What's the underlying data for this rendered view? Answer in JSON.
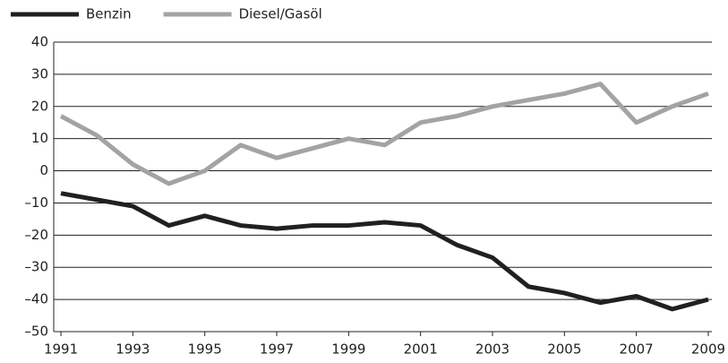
{
  "chart_data": {
    "type": "line",
    "x": [
      1991,
      1992,
      1993,
      1994,
      1995,
      1996,
      1997,
      1998,
      1999,
      2000,
      2001,
      2002,
      2003,
      2004,
      2005,
      2006,
      2007,
      2008,
      2009
    ],
    "series": [
      {
        "name": "Benzin",
        "color": "#231f20",
        "values": [
          -7,
          -9,
          -11,
          -17,
          -14,
          -17,
          -18,
          -17,
          -17,
          -16,
          -17,
          -23,
          -27,
          -36,
          -38,
          -41,
          -39,
          -43,
          -40
        ]
      },
      {
        "name": "Diesel/Gasöl",
        "color": "#a3a3a3",
        "values": [
          17,
          11,
          2,
          -4,
          0,
          8,
          4,
          7,
          10,
          8,
          15,
          17,
          20,
          22,
          24,
          27,
          15,
          20,
          24
        ]
      }
    ],
    "xlim": [
      1990.8,
      2009.1
    ],
    "xticks": [
      1991,
      1993,
      1995,
      1997,
      1999,
      2001,
      2003,
      2005,
      2007,
      2009
    ],
    "ylim": [
      -50,
      40
    ],
    "yticks": [
      {
        "value": -50,
        "label": "–50"
      },
      {
        "value": -40,
        "label": "–40"
      },
      {
        "value": -30,
        "label": "–30"
      },
      {
        "value": -20,
        "label": "–20"
      },
      {
        "value": -10,
        "label": "–10"
      },
      0,
      10,
      20,
      30,
      40
    ],
    "grid": true,
    "legend": "top-left"
  }
}
